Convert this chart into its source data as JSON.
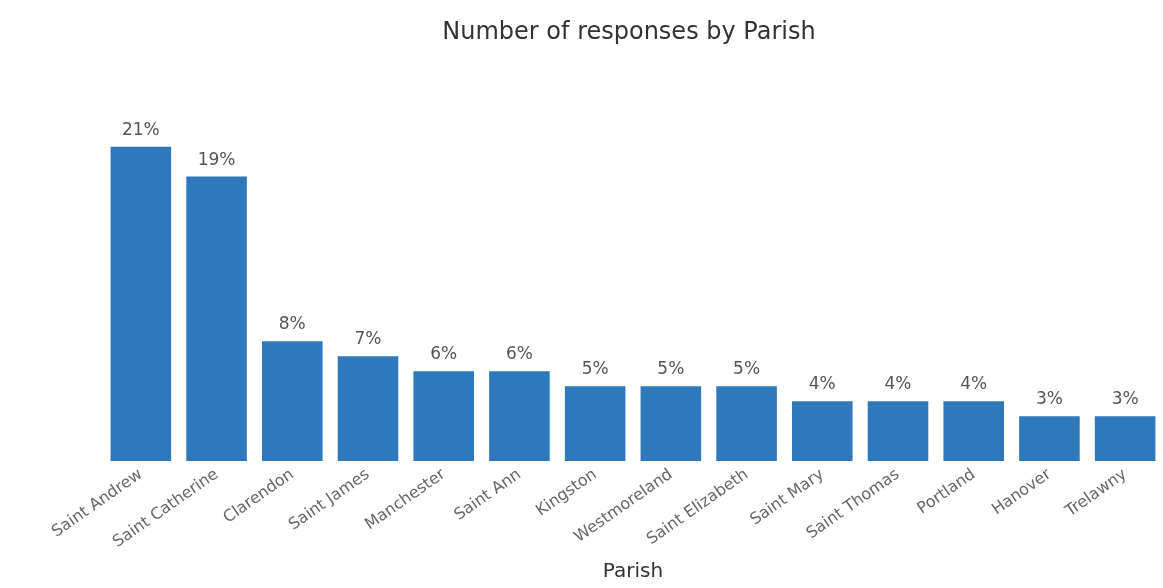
{
  "chart_data": {
    "type": "bar",
    "title": "Number of responses by Parish",
    "xlabel": "Parish",
    "relative": false,
    "categories": [
      "Saint Andrew",
      "Saint Catherine",
      "Clarendon",
      "Saint James",
      "Manchester",
      "Saint Ann",
      "Kingston",
      "Westmoreland",
      "Saint Elizabeth",
      "Saint Mary",
      "Saint Thomas",
      "Portland",
      "Hanover",
      "Trelawny"
    ],
    "values": [
      21,
      19,
      8,
      7,
      6,
      6,
      5,
      5,
      5,
      4,
      4,
      4,
      3,
      3
    ],
    "value_labels": [
      "21%",
      "19%",
      "8%",
      "7%",
      "6%",
      "6%",
      "5%",
      "5%",
      "5%",
      "4%",
      "4%",
      "4%",
      "3%",
      "3%"
    ],
    "color": "#2e78bc",
    "grid": false,
    "legend": false
  }
}
